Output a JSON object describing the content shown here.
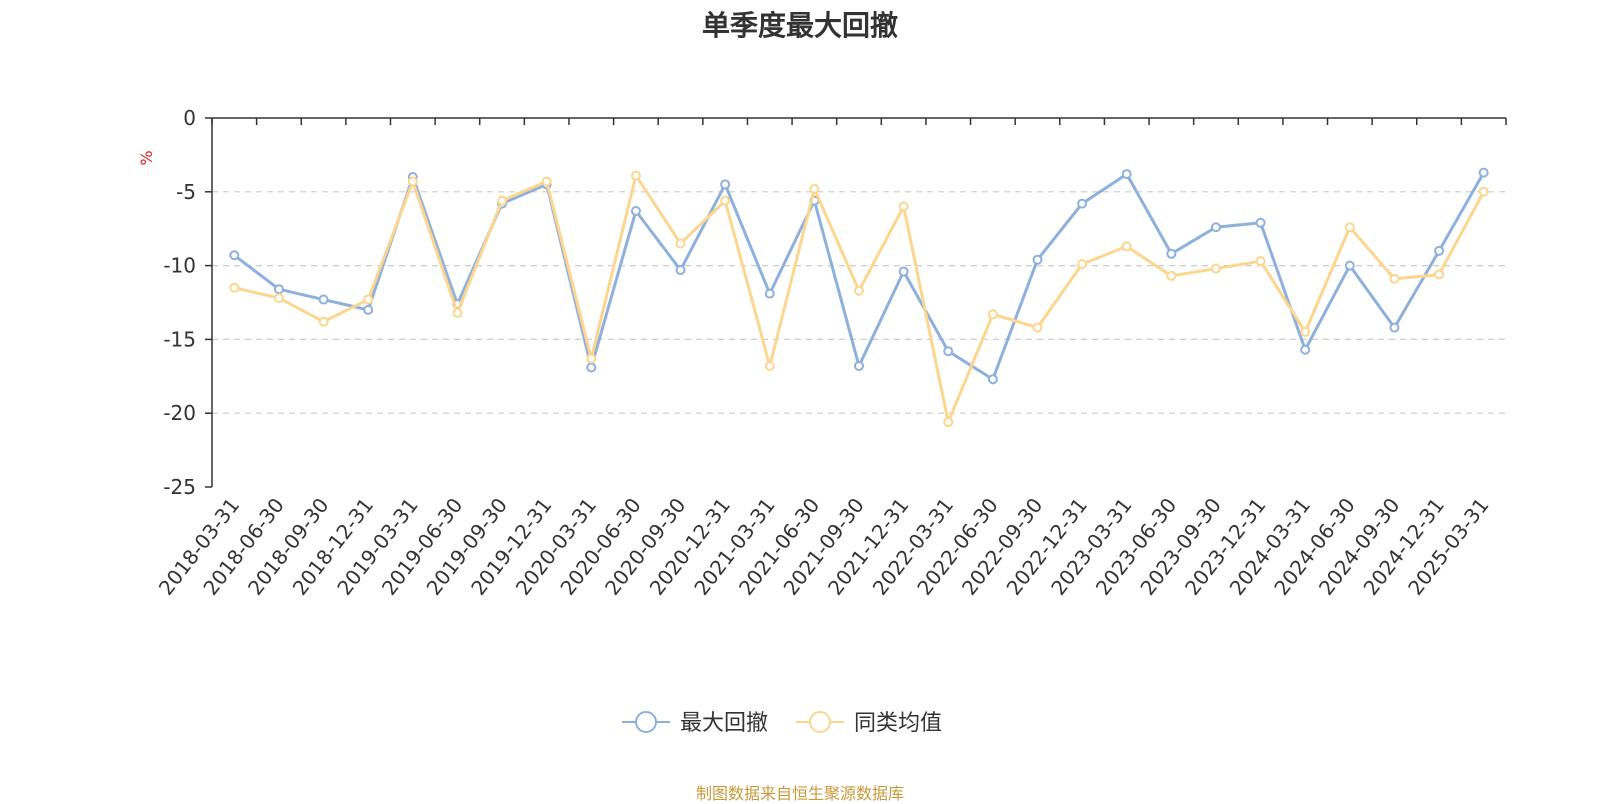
{
  "chart_data": {
    "type": "line",
    "title": "单季度最大回撤",
    "ylabel": "%",
    "ylim": [
      -25,
      0
    ],
    "yticks": [
      0,
      -5,
      -10,
      -15,
      -20,
      -25
    ],
    "grid": true,
    "legend_position": "bottom-center",
    "categories": [
      "2018-03-31",
      "2018-06-30",
      "2018-09-30",
      "2018-12-31",
      "2019-03-31",
      "2019-06-30",
      "2019-09-30",
      "2019-12-31",
      "2020-03-31",
      "2020-06-30",
      "2020-09-30",
      "2020-12-31",
      "2021-03-31",
      "2021-06-30",
      "2021-09-30",
      "2021-12-31",
      "2022-03-31",
      "2022-06-30",
      "2022-09-30",
      "2022-12-31",
      "2023-03-31",
      "2023-06-30",
      "2023-09-30",
      "2023-12-31",
      "2024-03-31",
      "2024-06-30",
      "2024-09-30",
      "2024-12-31",
      "2025-03-31"
    ],
    "series": [
      {
        "name": "最大回撤",
        "color": "#8eb0dc",
        "values": [
          -9.3,
          -11.6,
          -12.3,
          -13.0,
          -4.0,
          -12.6,
          -5.8,
          -4.5,
          -16.9,
          -6.3,
          -10.3,
          -4.5,
          -11.9,
          -5.6,
          -16.8,
          -10.4,
          -15.8,
          -17.7,
          -9.6,
          -5.8,
          -3.8,
          -9.2,
          -7.4,
          -7.1,
          -15.7,
          -10.0,
          -14.2,
          -9.0,
          -3.7
        ]
      },
      {
        "name": "同类均值",
        "color": "#fcd68e",
        "values": [
          -11.5,
          -12.2,
          -13.8,
          -12.3,
          -4.3,
          -13.2,
          -5.6,
          -4.3,
          -16.3,
          -3.9,
          -8.5,
          -5.6,
          -16.8,
          -4.8,
          -11.7,
          -6.0,
          -20.6,
          -13.3,
          -14.2,
          -9.9,
          -8.7,
          -10.7,
          -10.2,
          -9.7,
          -14.5,
          -7.4,
          -10.9,
          -10.6,
          -5.0
        ]
      }
    ]
  },
  "source_note": "制图数据来自恒生聚源数据库"
}
